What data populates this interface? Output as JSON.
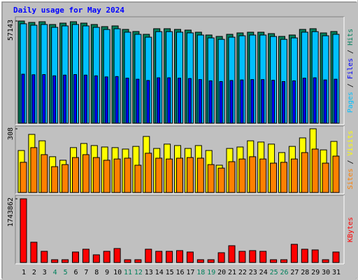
{
  "chart_data": {
    "type": "bar",
    "title": "Daily usage for May 2024",
    "categories": [
      "1",
      "2",
      "3",
      "4",
      "5",
      "6",
      "7",
      "8",
      "9",
      "10",
      "11",
      "12",
      "13",
      "14",
      "15",
      "16",
      "17",
      "18",
      "19",
      "20",
      "21",
      "22",
      "23",
      "24",
      "25",
      "26",
      "27",
      "28",
      "29",
      "30",
      "31"
    ],
    "category_colors": [
      "#000000",
      "#000000",
      "#000000",
      "#00805c",
      "#00805c",
      "#000000",
      "#000000",
      "#000000",
      "#000000",
      "#000000",
      "#00805c",
      "#00805c",
      "#000000",
      "#000000",
      "#000000",
      "#000000",
      "#000000",
      "#00805c",
      "#00805c",
      "#000000",
      "#000000",
      "#000000",
      "#000000",
      "#000000",
      "#00805c",
      "#00805c",
      "#000000",
      "#000000",
      "#000000",
      "#000000",
      "#000000"
    ],
    "legend_separator": "/",
    "panels": [
      {
        "ylim": [
          0,
          57143
        ],
        "yticks": [
          57143
        ],
        "series": [
          {
            "name": "Hits",
            "color": "#00805c",
            "values": [
              57143,
              56361,
              56752,
              55187,
              55970,
              56752,
              55970,
              55187,
              54013,
              54404,
              52447,
              51273,
              49707,
              52839,
              52839,
              52447,
              52056,
              50882,
              49316,
              48533,
              49707,
              50490,
              50882,
              50882,
              50099,
              48533,
              49316,
              52447,
              52839,
              50490,
              51273
            ]
          },
          {
            "name": "Files",
            "color": "#0000ff",
            "values": [
              27400,
              27100,
              27200,
              26500,
              26900,
              27200,
              26900,
              26500,
              25900,
              26100,
              25200,
              24600,
              23900,
              25400,
              25400,
              25200,
              25000,
              24400,
              23700,
              23300,
              23900,
              24200,
              24400,
              24400,
              24000,
              23300,
              23700,
              25200,
              25400,
              24200,
              24600
            ]
          },
          {
            "name": "Pages",
            "color": "#00c0ff",
            "values": [
              55600,
              54800,
              55200,
              53600,
              54400,
              55200,
              54400,
              53600,
              52400,
              52800,
              50900,
              49700,
              48100,
              51200,
              51200,
              50900,
              50500,
              49300,
              47700,
              46900,
              48100,
              48900,
              49300,
              49300,
              48500,
              46900,
              47700,
              50900,
              51200,
              48900,
              49700
            ]
          }
        ]
      },
      {
        "ylim": [
          0,
          308
        ],
        "yticks": [
          308
        ],
        "series": [
          {
            "name": "Visits",
            "color": "#ffff00",
            "values": [
              203,
              281,
              250,
              173,
              156,
              217,
              237,
              227,
              220,
              217,
              210,
              223,
              271,
              213,
              234,
              227,
              213,
              227,
              203,
              132,
              213,
              220,
              250,
              244,
              234,
              193,
              223,
              264,
              308,
              206,
              247
            ]
          },
          {
            "name": "Sites",
            "color": "#ff8000",
            "values": [
              146,
              217,
              183,
              125,
              135,
              169,
              183,
              169,
              156,
              162,
              166,
              132,
              190,
              166,
              162,
              166,
              169,
              166,
              135,
              118,
              149,
              162,
              173,
              162,
              142,
              146,
              162,
              193,
              210,
              142,
              176
            ]
          }
        ]
      },
      {
        "ylim": [
          0,
          1743862
        ],
        "yticks": [
          1743862
        ],
        "series": [
          {
            "name": "KBytes",
            "color": "#ff0000",
            "values": [
              1743862,
              555700,
              306600,
              76700,
              76700,
              287400,
              364100,
              210800,
              306600,
              383300,
              76700,
              76700,
              364100,
              306600,
              306600,
              325800,
              287400,
              76700,
              76700,
              268300,
              459900,
              306600,
              325800,
              306600,
              76700,
              76700,
              498200,
              364100,
              344900,
              76700,
              287400
            ]
          }
        ]
      }
    ]
  }
}
